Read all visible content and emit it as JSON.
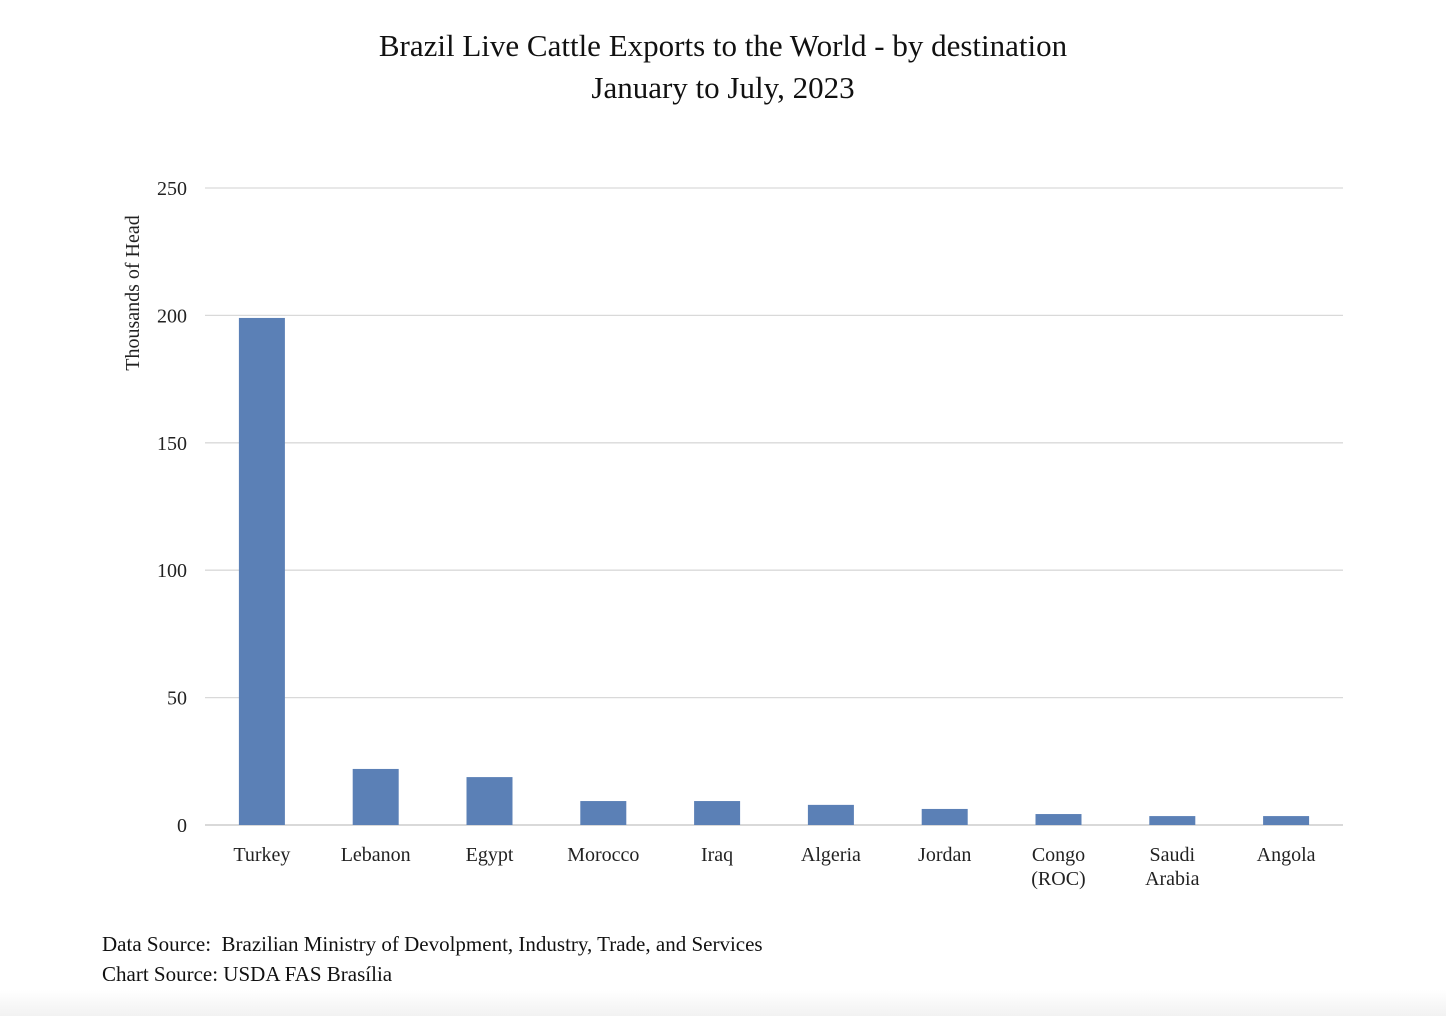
{
  "chart_data": {
    "type": "bar",
    "title": "Brazil Live Cattle Exports to the World - by destination",
    "subtitle": "January to July, 2023",
    "xlabel": "",
    "ylabel": "Thousands of Head",
    "ylim": [
      0,
      250
    ],
    "yticks": [
      0,
      50,
      100,
      150,
      200,
      250
    ],
    "grid": true,
    "categories": [
      [
        "Turkey"
      ],
      [
        "Lebanon"
      ],
      [
        "Egypt"
      ],
      [
        "Morocco"
      ],
      [
        "Iraq"
      ],
      [
        "Algeria"
      ],
      [
        "Jordan"
      ],
      [
        "Congo",
        "(ROC)"
      ],
      [
        "Saudi",
        "Arabia"
      ],
      [
        "Angola"
      ]
    ],
    "values": [
      199,
      22,
      18.8,
      9.4,
      9.4,
      7.9,
      6.3,
      4.3,
      3.5,
      3.5
    ],
    "bar_color": "#5b80b6",
    "grid_color": "#d9d9d9"
  },
  "footer": {
    "data_source": "Data Source:  Brazilian Ministry of Devolpment, Industry, Trade, and Services",
    "chart_source": "Chart Source: USDA FAS Brasília"
  }
}
